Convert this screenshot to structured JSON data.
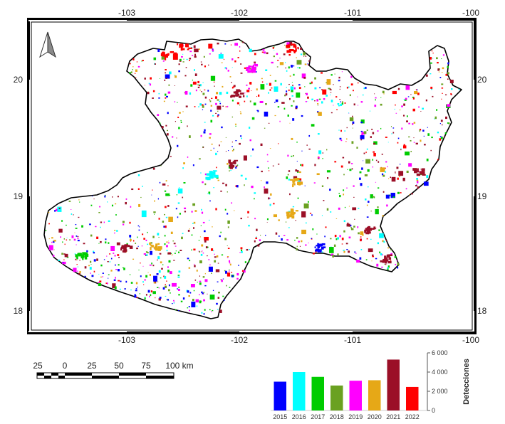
{
  "map": {
    "top_lon_labels": [
      "-103",
      "-102",
      "-101",
      "-100"
    ],
    "bottom_lon_labels": [
      "-103",
      "-102",
      "-101",
      "-100"
    ],
    "left_lat_labels": [
      "20",
      "19",
      "18"
    ],
    "right_lat_labels": [
      "20",
      "19",
      "18"
    ],
    "north_arrow_icon": "north-arrow-icon",
    "colors": {
      "y2015": "#0000ff",
      "y2016": "#00ffff",
      "y2017": "#00cc00",
      "y2018": "#6aa121",
      "y2019": "#ff00ff",
      "y2020": "#e6a817",
      "y2021": "#9b0f27",
      "y2022": "#ff0000"
    }
  },
  "scalebar": {
    "labels": [
      "25",
      "0",
      "25",
      "50",
      "75",
      "100 km"
    ]
  },
  "chart_data": {
    "type": "bar",
    "categories": [
      "2015",
      "2016",
      "2017",
      "2018",
      "2019",
      "2020",
      "2021",
      "2022"
    ],
    "values": [
      3000,
      4000,
      3500,
      2600,
      3100,
      3150,
      5300,
      2450
    ],
    "colors": [
      "#0000ff",
      "#00ffff",
      "#00cc00",
      "#6aa121",
      "#ff00ff",
      "#e6a817",
      "#9b0f27",
      "#ff0000"
    ],
    "ylabel": "Detecciones",
    "yticks": [
      "0",
      "2 000",
      "4 000",
      "6 000"
    ],
    "ylim": [
      0,
      6000
    ],
    "y_axis_side": "right",
    "grid": false
  }
}
